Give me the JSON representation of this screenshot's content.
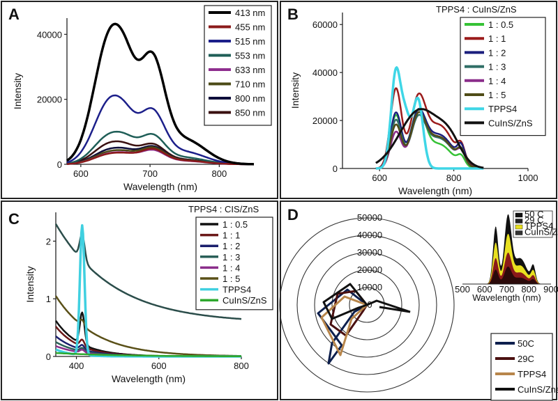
{
  "chart_data": [
    {
      "panel": "A",
      "type": "line",
      "xlabel": "Wavelength (nm)",
      "ylabel": "Intensity",
      "xlim": [
        580,
        850
      ],
      "ylim": [
        0,
        45000
      ],
      "xticks": [
        600,
        700,
        800
      ],
      "yticks": [
        0,
        20000,
        40000
      ],
      "legend_title": "",
      "series": [
        {
          "name": "413 nm",
          "color": "#000000",
          "width": 3.5,
          "peaks": [
            [
              644,
              40500,
              24
            ],
            [
              703,
              30000,
              18
            ]
          ],
          "mids": [
            [
              668,
              23000,
              14
            ]
          ]
        },
        {
          "name": "455 nm",
          "color": "#8b1a1a",
          "width": 2.5,
          "peaks": [
            [
              644,
              3200,
              24
            ],
            [
              703,
              4300,
              18
            ]
          ],
          "mids": [
            [
              668,
              2600,
              14
            ]
          ]
        },
        {
          "name": "515 nm",
          "color": "#1c1f8a",
          "width": 2.5,
          "peaks": [
            [
              644,
              20000,
              24
            ],
            [
              703,
              15000,
              18
            ]
          ],
          "mids": [
            [
              668,
              10500,
              14
            ]
          ]
        },
        {
          "name": "553 nm",
          "color": "#1f5e57",
          "width": 2.5,
          "peaks": [
            [
              644,
              9200,
              24
            ],
            [
              703,
              8200,
              18
            ]
          ],
          "mids": [
            [
              668,
              6500,
              14
            ]
          ]
        },
        {
          "name": "633 nm",
          "color": "#8e2e8e",
          "width": 2.5,
          "peaks": [
            [
              644,
              3300,
              24
            ],
            [
              703,
              4000,
              18
            ]
          ],
          "mids": [
            [
              668,
              2900,
              14
            ]
          ]
        },
        {
          "name": "710 nm",
          "color": "#4b4a16",
          "width": 2.5,
          "peaks": [
            [
              644,
              3900,
              24
            ],
            [
              703,
              4700,
              18
            ]
          ],
          "mids": [
            [
              668,
              3200,
              14
            ]
          ]
        },
        {
          "name": "800 nm",
          "color": "#0d0d3a",
          "width": 2.5,
          "peaks": [
            [
              644,
              4600,
              24
            ],
            [
              703,
              5000,
              18
            ]
          ],
          "mids": [
            [
              668,
              3700,
              14
            ]
          ]
        },
        {
          "name": "850 nm",
          "color": "#3a1010",
          "width": 2.5,
          "peaks": [
            [
              644,
              6500,
              24
            ],
            [
              703,
              5600,
              18
            ]
          ],
          "mids": [
            [
              668,
              4500,
              14
            ]
          ]
        }
      ]
    },
    {
      "panel": "B",
      "type": "line",
      "xlabel": "Wavelength (nm)",
      "ylabel": "Intensity",
      "xlim": [
        500,
        1000
      ],
      "ylim": [
        0,
        65000
      ],
      "xticks": [
        600,
        800,
        1000
      ],
      "yticks": [
        0,
        20000,
        40000,
        60000
      ],
      "legend_title": "TPPS4 : CuInS/ZnS",
      "series": [
        {
          "name": "1 : 0.5",
          "color": "#36c236",
          "width": 2.5,
          "peaks": [
            [
              644,
              22000,
              15
            ],
            [
              703,
              22000,
              20
            ]
          ],
          "mids": [
            [
              760,
              10000,
              35
            ],
            [
              820,
              3500,
              10
            ]
          ]
        },
        {
          "name": "1 : 1",
          "color": "#9b1b1b",
          "width": 2.5,
          "peaks": [
            [
              644,
              33000,
              15
            ],
            [
              703,
              25000,
              20
            ]
          ],
          "mids": [
            [
              760,
              18000,
              38
            ],
            [
              820,
              6000,
              10
            ]
          ]
        },
        {
          "name": "1 : 2",
          "color": "#1b1f7d",
          "width": 2.5,
          "peaks": [
            [
              644,
              23000,
              15
            ],
            [
              703,
              20000,
              20
            ]
          ],
          "mids": [
            [
              760,
              14000,
              38
            ],
            [
              820,
              6500,
              10
            ]
          ]
        },
        {
          "name": "1 : 3",
          "color": "#2f6e66",
          "width": 2.5,
          "peaks": [
            [
              644,
              20000,
              15
            ],
            [
              703,
              18000,
              20
            ]
          ],
          "mids": [
            [
              760,
              12500,
              38
            ],
            [
              820,
              5000,
              10
            ]
          ]
        },
        {
          "name": "1 : 4",
          "color": "#8a2d8a",
          "width": 2.5,
          "peaks": [
            [
              644,
              15000,
              15
            ],
            [
              703,
              19000,
              20
            ]
          ],
          "mids": [
            [
              760,
              13000,
              38
            ],
            [
              820,
              4500,
              10
            ]
          ]
        },
        {
          "name": "1 : 5",
          "color": "#4f4c17",
          "width": 2.5,
          "peaks": [
            [
              644,
              18000,
              15
            ],
            [
              703,
              19000,
              20
            ]
          ],
          "mids": [
            [
              760,
              13000,
              38
            ],
            [
              820,
              5000,
              10
            ]
          ]
        },
        {
          "name": "TPPS4",
          "color": "#3fd6e6",
          "width": 3.5,
          "peaks": [
            [
              644,
              40000,
              13
            ],
            [
              703,
              29000,
              14
            ]
          ],
          "mids": [
            [
              670,
              19000,
              12
            ]
          ]
        },
        {
          "name": "CuInS/ZnS",
          "color": "#111111",
          "width": 3.0,
          "peaks": [
            [
              710,
              24500,
              55
            ]
          ],
          "mids": [
            [
              790,
              8000,
              30
            ]
          ]
        }
      ]
    },
    {
      "panel": "C",
      "type": "line",
      "xlabel": "Wavelength (nm)",
      "ylabel": "Intensity",
      "xlim": [
        350,
        800
      ],
      "ylim": [
        0,
        2.5
      ],
      "xticks": [
        400,
        600,
        800
      ],
      "yticks": [
        0,
        1,
        2
      ],
      "legend_title": "TPPS4 : CIS/ZnS",
      "series": [
        {
          "name": "1 : 0.5",
          "color": "#111111",
          "width": 2.5,
          "base": 0.62,
          "decay": 60,
          "peak": [
            414,
            0.55
          ]
        },
        {
          "name": "1 : 1",
          "color": "#6b1818",
          "width": 2.5,
          "base": 0.52,
          "decay": 58,
          "peak": [
            414,
            0.12
          ]
        },
        {
          "name": "1 : 2",
          "color": "#1b1f6d",
          "width": 2.5,
          "base": 0.35,
          "decay": 60,
          "peak": [
            414,
            0.08
          ]
        },
        {
          "name": "1 : 3",
          "color": "#2a5f58",
          "width": 2.5,
          "base": 0.25,
          "decay": 62,
          "peak": [
            414,
            0.06
          ]
        },
        {
          "name": "1 : 4",
          "color": "#8a2d8a",
          "width": 2.5,
          "base": 0.18,
          "decay": 65,
          "peak": [
            414,
            0.05
          ]
        },
        {
          "name": "1 : 5",
          "color": "#5a5018",
          "width": 2.5,
          "base": 1.05,
          "decay": 95,
          "peak": [
            414,
            0.1
          ]
        },
        {
          "name": "TPPS4",
          "color": "#40d0e0",
          "width": 3.5,
          "base": 0.12,
          "decay": 40,
          "peak": [
            414,
            2.25
          ]
        },
        {
          "name": "CuInS/ZnS",
          "color": "#2ea82e",
          "width": 2.5,
          "base": 0.06,
          "decay": 150,
          "peak": [
            414,
            0.0
          ]
        }
      ],
      "top_curve": {
        "color": "#2b4d4a",
        "start": 2.3,
        "end": 0.58
      }
    },
    {
      "panel": "D",
      "type": "polar",
      "rticks": [
        0,
        10000,
        20000,
        30000,
        40000,
        50000
      ],
      "series": [
        {
          "name": "50C",
          "color": "#0d1f4d"
        },
        {
          "name": "29C",
          "color": "#4a1010"
        },
        {
          "name": "TPPS4",
          "color": "#b8864b"
        },
        {
          "name": "CuInS/Zns",
          "color": "#111111"
        }
      ],
      "inset": {
        "xlabel": "Wavelength (nm)",
        "xticks": [
          500,
          600,
          700,
          800,
          900
        ],
        "legend": [
          {
            "name": "50 C",
            "color": "#111111"
          },
          {
            "name": "29 C",
            "color": "#222222"
          },
          {
            "name": "TPPS4",
            "color": "#e8e020"
          },
          {
            "name": "CuInS/ZnS",
            "color": "#333333"
          }
        ]
      }
    }
  ]
}
